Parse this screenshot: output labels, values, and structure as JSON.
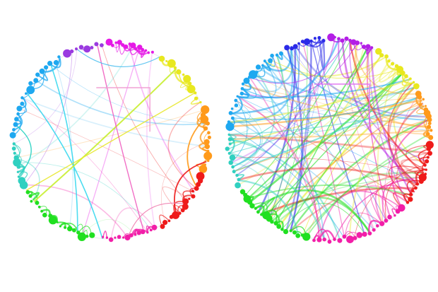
{
  "diagrams": [
    {
      "id": "left",
      "density": "sparse",
      "edge_opacity_thin": 0.28,
      "edge_count_random": 22,
      "groups": [
        {
          "color": "#e619e6",
          "from_deg": 268,
          "to_deg": 296,
          "node_count": 14
        },
        {
          "color": "#e8e81f",
          "from_deg": 300,
          "to_deg": 338,
          "node_count": 12
        },
        {
          "color": "#ff9a1a",
          "from_deg": 340,
          "to_deg": 18,
          "node_count": 14
        },
        {
          "color": "#ee1a1a",
          "from_deg": 20,
          "to_deg": 60,
          "node_count": 16
        },
        {
          "color": "#f21ea8",
          "from_deg": 62,
          "to_deg": 96,
          "node_count": 14
        },
        {
          "color": "#20e020",
          "from_deg": 100,
          "to_deg": 150,
          "node_count": 18
        },
        {
          "color": "#30d0c0",
          "from_deg": 152,
          "to_deg": 180,
          "node_count": 10
        },
        {
          "color": "#1ea8f0",
          "from_deg": 182,
          "to_deg": 240,
          "node_count": 18
        },
        {
          "color": "#9a3ae0",
          "from_deg": 242,
          "to_deg": 266,
          "node_count": 8
        }
      ],
      "arcs": [
        {
          "a": 210,
          "b": 95,
          "color": "#3ad8ee",
          "width": 1.6
        },
        {
          "a": 232,
          "b": 110,
          "color": "#3ad8ee",
          "width": 1.6
        },
        {
          "a": 142,
          "b": 312,
          "color": "#c8ee30",
          "width": 2.0
        },
        {
          "a": 150,
          "b": 330,
          "color": "#e8e830",
          "width": 1.4
        },
        {
          "a": 262,
          "b": 70,
          "color": "#f060c0",
          "width": 1.4
        },
        {
          "a": 250,
          "b": 300,
          "color": "#50c0f0",
          "width": 1.2
        },
        {
          "a": 346,
          "b": 28,
          "color": "#ff9a1a",
          "width": 1.8
        },
        {
          "a": 12,
          "b": 48,
          "color": "#ee1a1a",
          "width": 1.8
        },
        {
          "a": 80,
          "b": 40,
          "color": "#f080b0",
          "width": 1.2
        },
        {
          "a": 190,
          "b": 160,
          "color": "#20d0c0",
          "width": 1.4
        }
      ],
      "bracket": {
        "color": "#f09ad0"
      }
    },
    {
      "id": "right",
      "density": "dense",
      "edge_opacity_thin": 0.45,
      "edge_count_random": 140,
      "groups": [
        {
          "color": "#2a2ae8",
          "from_deg": 244,
          "to_deg": 268,
          "node_count": 10
        },
        {
          "color": "#b31ee6",
          "from_deg": 270,
          "to_deg": 296,
          "node_count": 12
        },
        {
          "color": "#e8e81f",
          "from_deg": 298,
          "to_deg": 330,
          "node_count": 12
        },
        {
          "color": "#ff9a1a",
          "from_deg": 332,
          "to_deg": 0,
          "node_count": 14
        },
        {
          "color": "#ee1a1a",
          "from_deg": 2,
          "to_deg": 40,
          "node_count": 16
        },
        {
          "color": "#f21ea8",
          "from_deg": 42,
          "to_deg": 100,
          "node_count": 20
        },
        {
          "color": "#20e020",
          "from_deg": 102,
          "to_deg": 150,
          "node_count": 20
        },
        {
          "color": "#30d0c0",
          "from_deg": 152,
          "to_deg": 184,
          "node_count": 12
        },
        {
          "color": "#1ea8f0",
          "from_deg": 186,
          "to_deg": 242,
          "node_count": 22
        }
      ],
      "arcs": [],
      "bracket": {
        "color": "#e070f0"
      }
    }
  ]
}
